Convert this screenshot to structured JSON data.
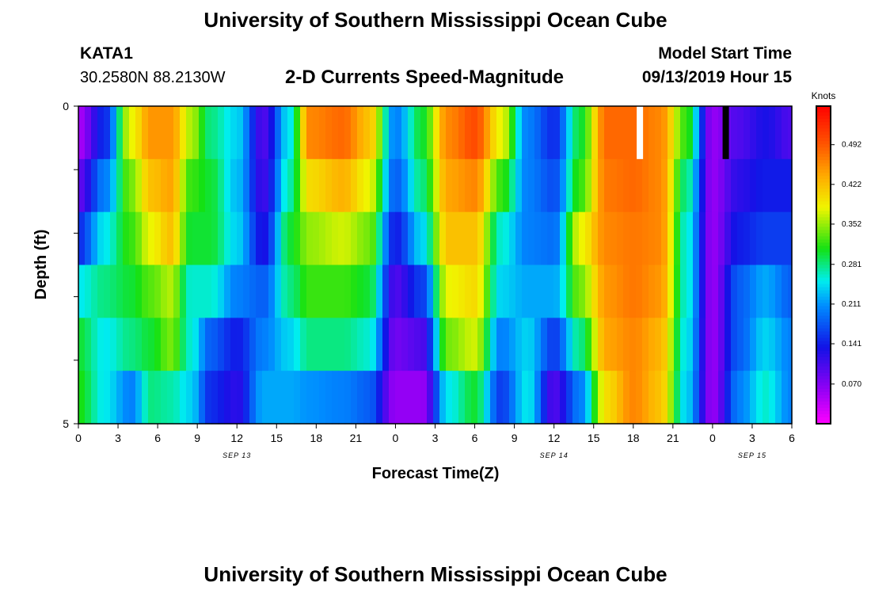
{
  "page": {
    "title": "University of Southern Mississippi Ocean Cube",
    "footer_title": "University of Southern Mississippi Ocean Cube",
    "station_id": "KATA1",
    "station_coords": "30.2580N 88.2130W",
    "plot_title": "2-D Currents Speed-Magnitude",
    "model_start_label": "Model Start Time",
    "model_start_value": "09/13/2019 Hour 15"
  },
  "chart_data": {
    "type": "heatmap",
    "title": "2-D Currents Speed-Magnitude",
    "xlabel": "Forecast Time(Z)",
    "ylabel": "Depth (ft)",
    "x_ticks": [
      "0",
      "3",
      "6",
      "9",
      "12",
      "15",
      "18",
      "21",
      "0",
      "3",
      "6",
      "9",
      "12",
      "15",
      "18",
      "21",
      "0",
      "3",
      "6"
    ],
    "day_labels": [
      {
        "label": "SEP 13",
        "hour": 12
      },
      {
        "label": "SEP 14",
        "hour": 36
      },
      {
        "label": "SEP 15",
        "hour": 51
      }
    ],
    "x_range_hours": [
      0,
      54
    ],
    "y_ticks": [
      "0",
      "5"
    ],
    "ylim": [
      0,
      5
    ],
    "depth_bins": 5,
    "colorbar": {
      "label": "Knots",
      "min": 0.0,
      "max": 0.56,
      "ticks": [
        "0.492",
        "0.422",
        "0.352",
        "0.281",
        "0.211",
        "0.141",
        "0.070"
      ],
      "tick_values": [
        0.492,
        0.422,
        0.352,
        0.281,
        0.211,
        0.141,
        0.07
      ]
    },
    "missing_markers": [
      {
        "hour": 42.5,
        "color": "#ffffff"
      },
      {
        "hour": 49.0,
        "color": "#000000"
      }
    ],
    "keyframes": [
      {
        "h": 0,
        "v": [
          0.05,
          0.09,
          0.15,
          0.25,
          0.3,
          0.31
        ]
      },
      {
        "h": 2,
        "v": [
          0.15,
          0.2,
          0.25,
          0.28,
          0.25,
          0.25
        ]
      },
      {
        "h": 4,
        "v": [
          0.38,
          0.34,
          0.32,
          0.3,
          0.28,
          0.2
        ]
      },
      {
        "h": 5.5,
        "v": [
          0.45,
          0.42,
          0.38,
          0.33,
          0.3,
          0.28
        ]
      },
      {
        "h": 7,
        "v": [
          0.45,
          0.44,
          0.42,
          0.36,
          0.34,
          0.27
        ]
      },
      {
        "h": 8.5,
        "v": [
          0.36,
          0.32,
          0.3,
          0.26,
          0.26,
          0.24
        ]
      },
      {
        "h": 10,
        "v": [
          0.28,
          0.3,
          0.3,
          0.26,
          0.18,
          0.15
        ]
      },
      {
        "h": 12,
        "v": [
          0.24,
          0.23,
          0.24,
          0.2,
          0.14,
          0.12
        ]
      },
      {
        "h": 14,
        "v": [
          0.1,
          0.11,
          0.13,
          0.18,
          0.2,
          0.22
        ]
      },
      {
        "h": 16,
        "v": [
          0.25,
          0.27,
          0.3,
          0.28,
          0.24,
          0.22
        ]
      },
      {
        "h": 17.5,
        "v": [
          0.46,
          0.4,
          0.35,
          0.32,
          0.28,
          0.21
        ]
      },
      {
        "h": 20,
        "v": [
          0.48,
          0.43,
          0.37,
          0.32,
          0.28,
          0.2
        ]
      },
      {
        "h": 22,
        "v": [
          0.42,
          0.38,
          0.34,
          0.3,
          0.26,
          0.18
        ]
      },
      {
        "h": 24,
        "v": [
          0.2,
          0.18,
          0.14,
          0.1,
          0.08,
          0.06
        ]
      },
      {
        "h": 26,
        "v": [
          0.3,
          0.28,
          0.24,
          0.16,
          0.1,
          0.06
        ]
      },
      {
        "h": 28,
        "v": [
          0.46,
          0.44,
          0.42,
          0.38,
          0.34,
          0.25
        ]
      },
      {
        "h": 30,
        "v": [
          0.5,
          0.46,
          0.42,
          0.4,
          0.37,
          0.3
        ]
      },
      {
        "h": 32,
        "v": [
          0.38,
          0.32,
          0.26,
          0.24,
          0.2,
          0.16
        ]
      },
      {
        "h": 34,
        "v": [
          0.2,
          0.2,
          0.2,
          0.22,
          0.24,
          0.25
        ]
      },
      {
        "h": 36,
        "v": [
          0.15,
          0.17,
          0.19,
          0.22,
          0.16,
          0.1
        ]
      },
      {
        "h": 38,
        "v": [
          0.3,
          0.32,
          0.38,
          0.34,
          0.28,
          0.2
        ]
      },
      {
        "h": 40,
        "v": [
          0.48,
          0.47,
          0.46,
          0.45,
          0.44,
          0.4
        ]
      },
      {
        "h": 42,
        "v": [
          0.48,
          0.48,
          0.47,
          0.47,
          0.46,
          0.46
        ]
      },
      {
        "h": 44,
        "v": [
          0.46,
          0.46,
          0.46,
          0.45,
          0.43,
          0.42
        ]
      },
      {
        "h": 46,
        "v": [
          0.32,
          0.28,
          0.26,
          0.26,
          0.25,
          0.24
        ]
      },
      {
        "h": 48,
        "v": [
          0.06,
          0.06,
          0.06,
          0.06,
          0.06,
          0.06
        ]
      },
      {
        "h": 50,
        "v": [
          0.1,
          0.12,
          0.14,
          0.18,
          0.18,
          0.2
        ]
      },
      {
        "h": 52,
        "v": [
          0.13,
          0.14,
          0.16,
          0.22,
          0.24,
          0.26
        ]
      },
      {
        "h": 54,
        "v": [
          0.1,
          0.14,
          0.16,
          0.18,
          0.2,
          0.2
        ]
      }
    ]
  }
}
